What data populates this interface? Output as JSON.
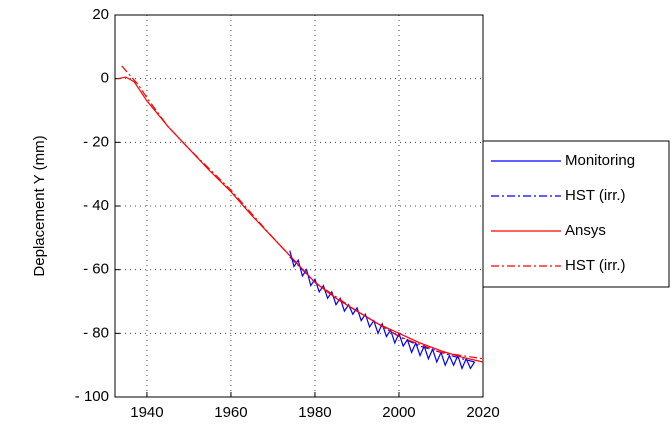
{
  "chart_data": {
    "type": "line",
    "y_label": "Deplacement Y (mm)",
    "xlim": [
      1932.4,
      2020
    ],
    "xticks": [
      1940,
      1960,
      1980,
      2000,
      2020
    ],
    "ylim": [
      -100,
      20
    ],
    "yticks": [
      {
        "value": -100,
        "label": "- 100"
      },
      {
        "value": -80,
        "label": "- 80"
      },
      {
        "value": -60,
        "label": "- 60"
      },
      {
        "value": -40,
        "label": "- 40"
      },
      {
        "value": -20,
        "label": "- 20"
      },
      0,
      20
    ],
    "grid": true,
    "legend": "right",
    "series": [
      {
        "name": "Monitoring",
        "color": "#0000ff",
        "style": "solid",
        "x": [
          1974,
          1975,
          1976,
          1977,
          1978,
          1979,
          1980,
          1981,
          1982,
          1983,
          1984,
          1985,
          1986,
          1987,
          1988,
          1989,
          1990,
          1991,
          1992,
          1993,
          1994,
          1995,
          1996,
          1997,
          1998,
          1999,
          2000,
          2001,
          2002,
          2003,
          2004,
          2005,
          2006,
          2007,
          2008,
          2009,
          2010,
          2011,
          2012,
          2013,
          2014,
          2015,
          2016,
          2017,
          2018
        ],
        "values": [
          -54,
          -59,
          -57,
          -62,
          -60,
          -65,
          -63,
          -67,
          -65,
          -69,
          -67,
          -71,
          -69,
          -73,
          -71,
          -74,
          -72,
          -76,
          -74,
          -78,
          -76,
          -80,
          -77,
          -81,
          -79,
          -83,
          -80,
          -84,
          -82,
          -86,
          -83,
          -87,
          -84,
          -88,
          -85,
          -89,
          -86,
          -90,
          -87,
          -90,
          -87,
          -91,
          -88,
          -91,
          -89
        ]
      },
      {
        "name": "HST (irr.)",
        "color": "#0000ff",
        "style": "dashdot",
        "x": [
          1974,
          1980,
          1985,
          1990,
          1995,
          2000,
          2005,
          2010,
          2015,
          2018
        ],
        "values": [
          -56,
          -64,
          -69,
          -73,
          -77,
          -81,
          -84,
          -86,
          -88,
          -89
        ]
      },
      {
        "name": "Ansys",
        "color": "#ff0000",
        "style": "solid",
        "x": [
          1933,
          1935,
          1937,
          1940,
          1945,
          1950,
          1955,
          1960,
          1965,
          1970,
          1975,
          1980,
          1985,
          1990,
          1995,
          2000,
          2005,
          2010,
          2015,
          2020
        ],
        "values": [
          0,
          0.5,
          -1,
          -7,
          -15,
          -22,
          -29,
          -35.5,
          -43,
          -50,
          -57,
          -64,
          -69,
          -73,
          -77,
          -80,
          -83,
          -85.5,
          -87.5,
          -89
        ]
      },
      {
        "name": "HST (irr.)",
        "color": "#ff0000",
        "style": "dashdot",
        "x": [
          1934,
          1936,
          1938,
          1940,
          1945,
          1950,
          1960,
          1970,
          1980,
          1990,
          2000,
          2010,
          2020
        ],
        "values": [
          4,
          1,
          -2,
          -6,
          -15,
          -22,
          -35,
          -50,
          -64,
          -73,
          -81,
          -86,
          -88
        ]
      }
    ]
  }
}
